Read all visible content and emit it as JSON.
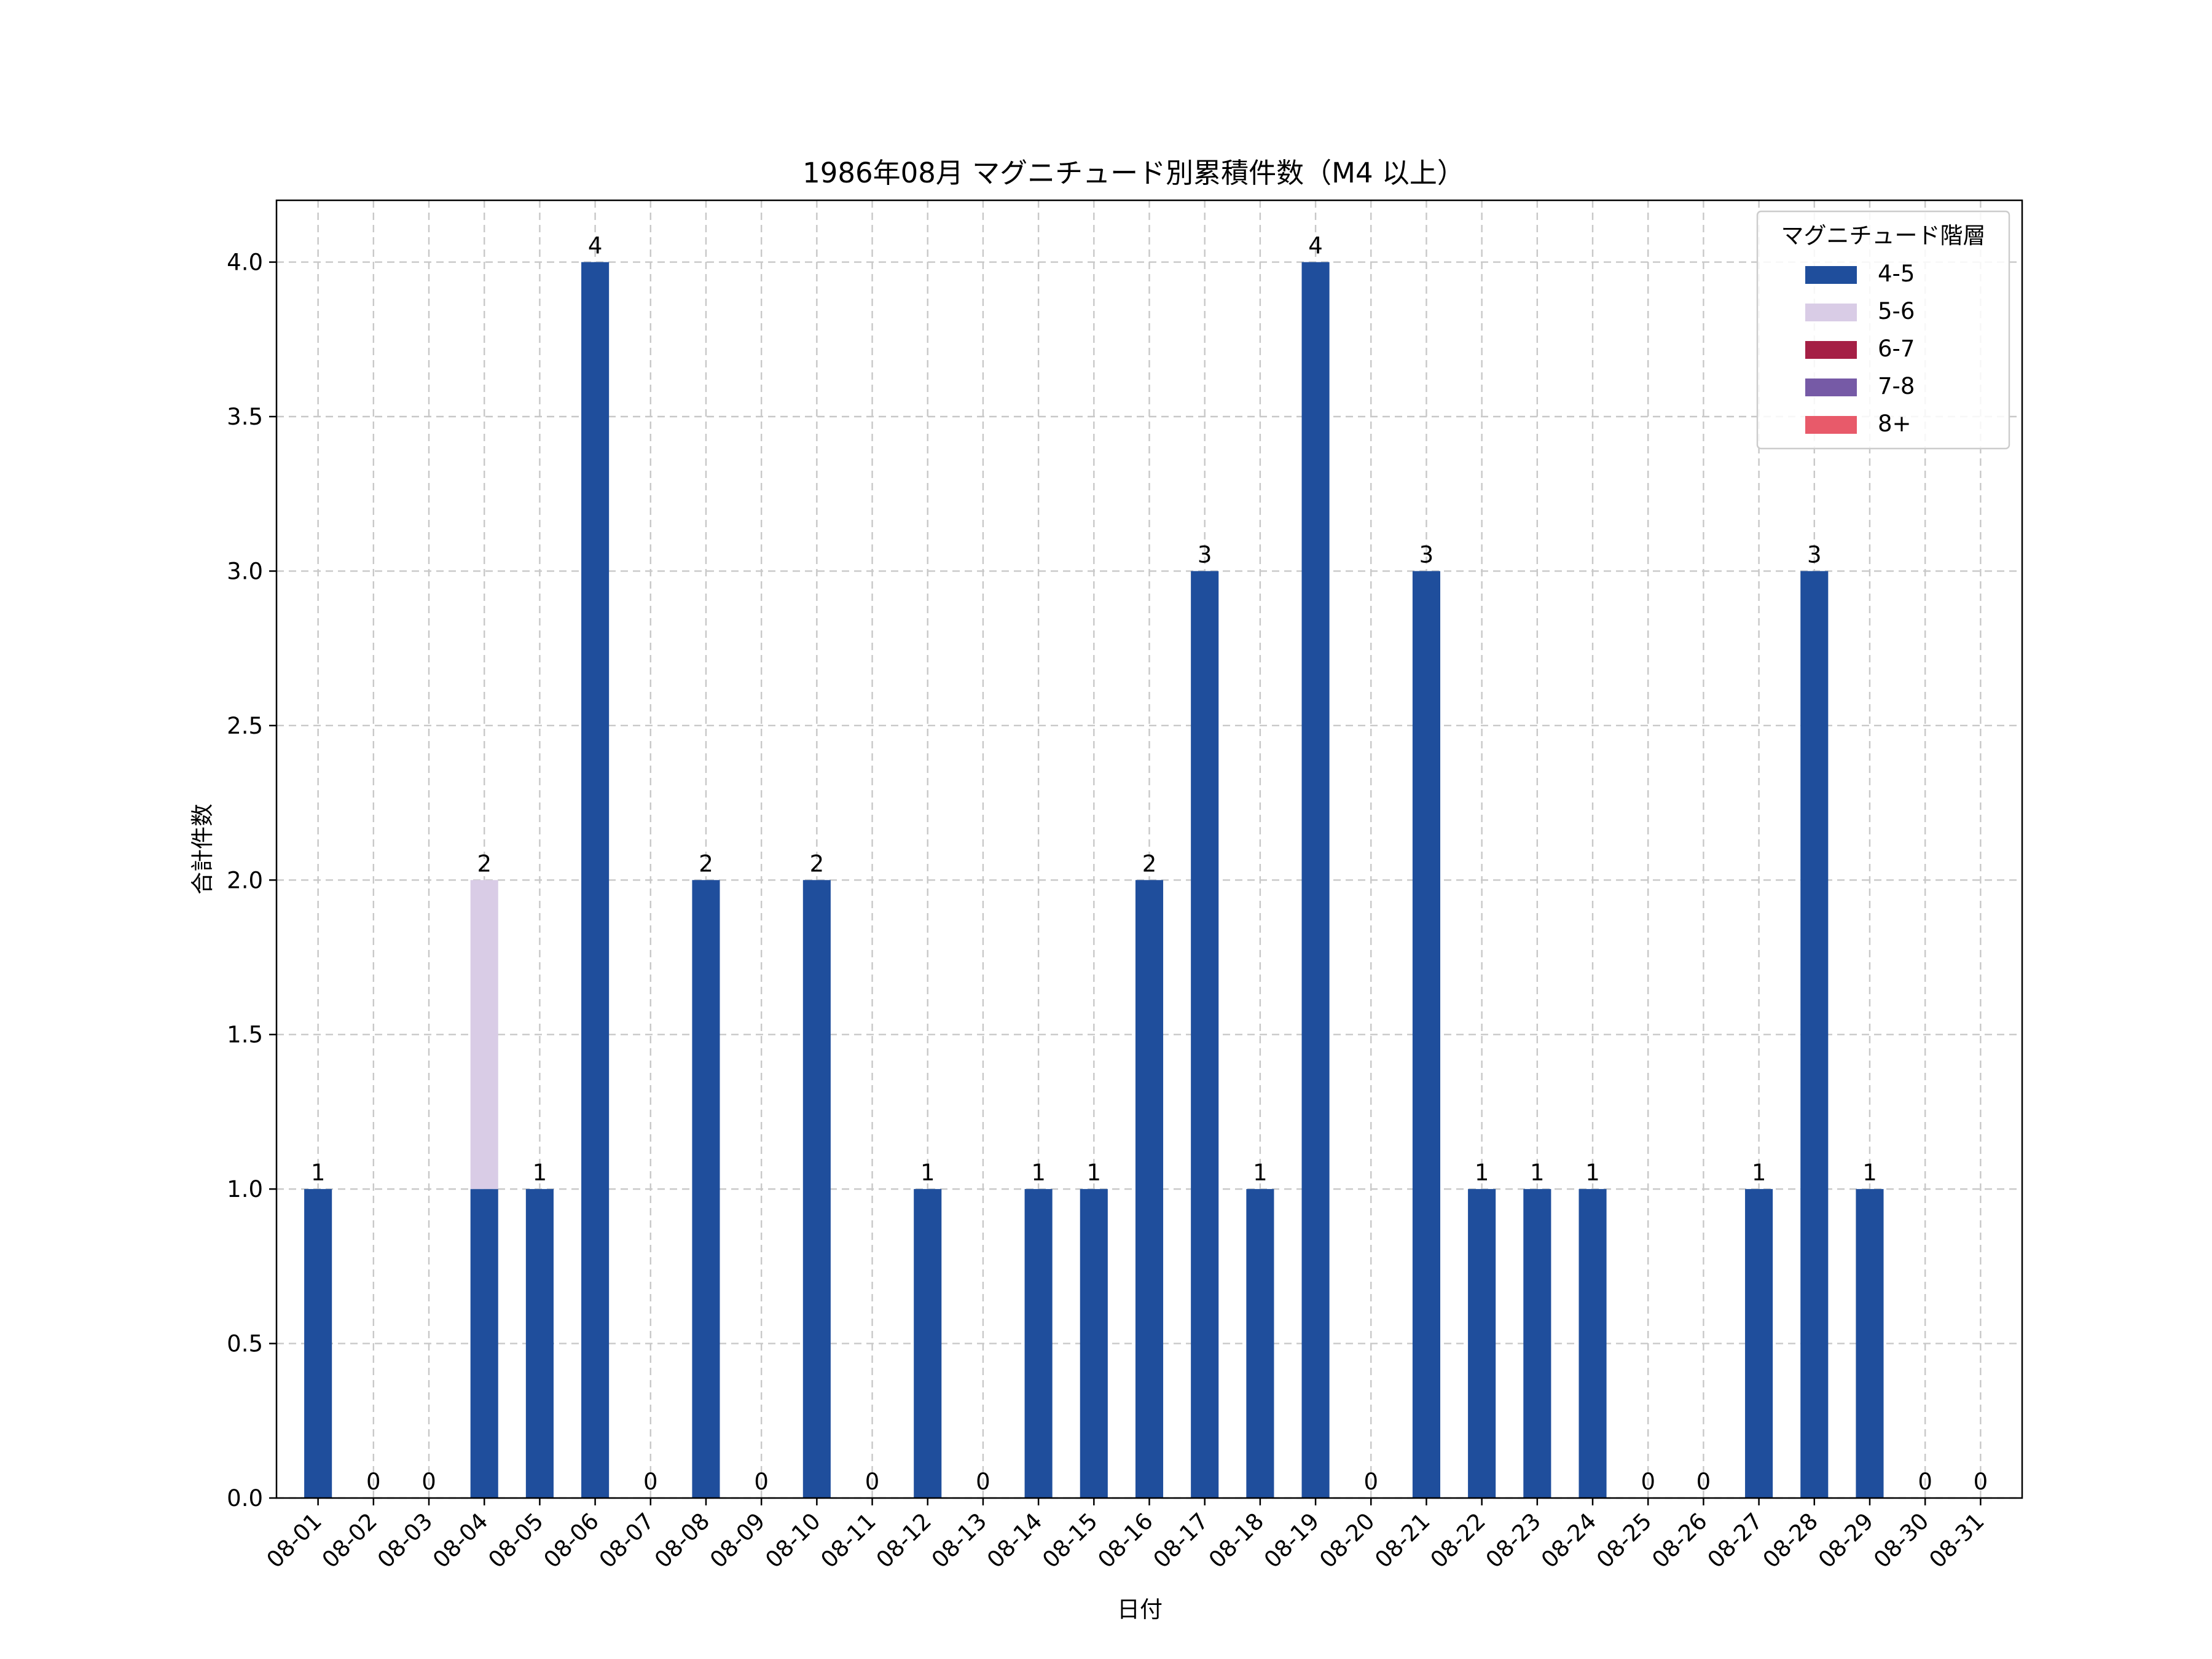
{
  "chart_data": {
    "type": "bar",
    "stacked": true,
    "title": "1986年08月 マグニチュード別累積件数（M4 以上）",
    "xlabel": "日付",
    "ylabel": "合計件数",
    "ylim": [
      0,
      4.2
    ],
    "yticks": [
      "0.0",
      "0.5",
      "1.0",
      "1.5",
      "2.0",
      "2.5",
      "3.0",
      "3.5",
      "4.0"
    ],
    "grid": true,
    "legend_title": "マグニチュード階層",
    "legend_position": "top-right",
    "categories": [
      "08-01",
      "08-02",
      "08-03",
      "08-04",
      "08-05",
      "08-06",
      "08-07",
      "08-08",
      "08-09",
      "08-10",
      "08-11",
      "08-12",
      "08-13",
      "08-14",
      "08-15",
      "08-16",
      "08-17",
      "08-18",
      "08-19",
      "08-20",
      "08-21",
      "08-22",
      "08-23",
      "08-24",
      "08-25",
      "08-26",
      "08-27",
      "08-28",
      "08-29",
      "08-30",
      "08-31"
    ],
    "series": [
      {
        "name": "4-5",
        "color": "#1f4e9c",
        "values": [
          1,
          0,
          0,
          1,
          1,
          4,
          0,
          2,
          0,
          2,
          0,
          1,
          0,
          1,
          1,
          2,
          3,
          1,
          4,
          0,
          3,
          1,
          1,
          1,
          0,
          0,
          1,
          3,
          1,
          0,
          0
        ]
      },
      {
        "name": "5-6",
        "color": "#d9cce6",
        "values": [
          0,
          0,
          0,
          1,
          0,
          0,
          0,
          0,
          0,
          0,
          0,
          0,
          0,
          0,
          0,
          0,
          0,
          0,
          0,
          0,
          0,
          0,
          0,
          0,
          0,
          0,
          0,
          0,
          0,
          0,
          0
        ]
      },
      {
        "name": "6-7",
        "color": "#a51f45",
        "values": [
          0,
          0,
          0,
          0,
          0,
          0,
          0,
          0,
          0,
          0,
          0,
          0,
          0,
          0,
          0,
          0,
          0,
          0,
          0,
          0,
          0,
          0,
          0,
          0,
          0,
          0,
          0,
          0,
          0,
          0,
          0
        ]
      },
      {
        "name": "7-8",
        "color": "#765aa6",
        "values": [
          0,
          0,
          0,
          0,
          0,
          0,
          0,
          0,
          0,
          0,
          0,
          0,
          0,
          0,
          0,
          0,
          0,
          0,
          0,
          0,
          0,
          0,
          0,
          0,
          0,
          0,
          0,
          0,
          0,
          0,
          0
        ]
      },
      {
        "name": "8+",
        "color": "#e85a6a",
        "values": [
          0,
          0,
          0,
          0,
          0,
          0,
          0,
          0,
          0,
          0,
          0,
          0,
          0,
          0,
          0,
          0,
          0,
          0,
          0,
          0,
          0,
          0,
          0,
          0,
          0,
          0,
          0,
          0,
          0,
          0,
          0
        ]
      }
    ],
    "totals": [
      1,
      0,
      0,
      2,
      1,
      4,
      0,
      2,
      0,
      2,
      0,
      1,
      0,
      1,
      1,
      2,
      3,
      1,
      4,
      0,
      3,
      1,
      1,
      1,
      0,
      0,
      1,
      3,
      1,
      0,
      0
    ]
  }
}
